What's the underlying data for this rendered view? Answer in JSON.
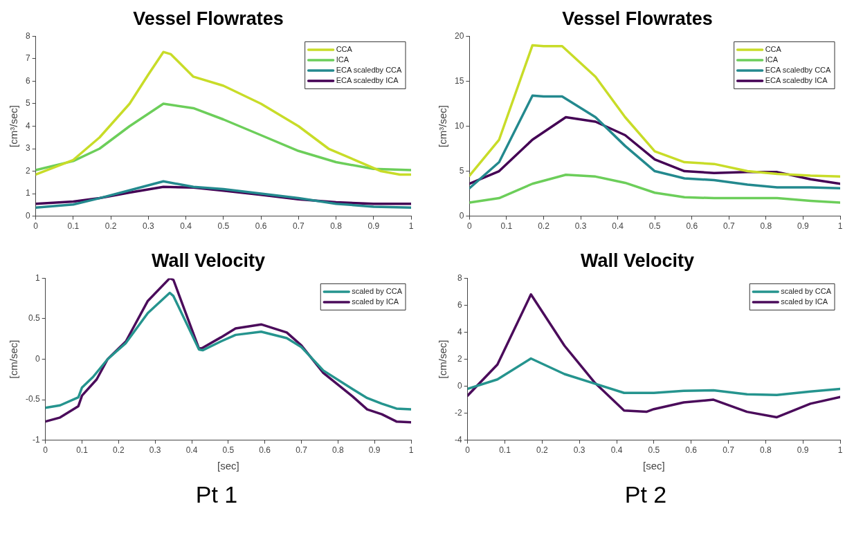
{
  "chart_data": [
    {
      "type": "line",
      "title": "Vessel Flowrates",
      "ylabel": "[cm³/sec]",
      "xlim": [
        0,
        1
      ],
      "xticks": [
        0,
        0.1,
        0.2,
        0.3,
        0.4,
        0.5,
        0.6,
        0.7,
        0.8,
        0.9,
        1
      ],
      "ylim": [
        0,
        8
      ],
      "yticks": [
        0,
        1,
        2,
        3,
        4,
        5,
        6,
        7,
        8
      ],
      "grid": false,
      "legend": "top right",
      "marker": "none",
      "line_style": "solid",
      "series": [
        {
          "name": "CCA",
          "color": "#c8dc28",
          "x": [
            0,
            0.1,
            0.17,
            0.25,
            0.3,
            0.34,
            0.36,
            0.42,
            0.5,
            0.6,
            0.7,
            0.78,
            0.85,
            0.92,
            0.97,
            1
          ],
          "values": [
            1.85,
            2.5,
            3.5,
            5.0,
            6.3,
            7.3,
            7.2,
            6.2,
            5.8,
            5.0,
            4.0,
            3.0,
            2.5,
            2.0,
            1.85,
            1.85
          ]
        },
        {
          "name": "ICA",
          "color": "#6cce5a",
          "x": [
            0,
            0.1,
            0.17,
            0.25,
            0.34,
            0.42,
            0.5,
            0.6,
            0.7,
            0.8,
            0.9,
            1
          ],
          "values": [
            2.05,
            2.45,
            3.0,
            4.0,
            5.0,
            4.8,
            4.3,
            3.6,
            2.9,
            2.4,
            2.1,
            2.05
          ]
        },
        {
          "name": "ECA scaledby CCA",
          "color": "#23898e",
          "x": [
            0,
            0.1,
            0.17,
            0.25,
            0.34,
            0.42,
            0.5,
            0.6,
            0.7,
            0.8,
            0.9,
            1
          ],
          "values": [
            0.38,
            0.52,
            0.8,
            1.15,
            1.55,
            1.3,
            1.2,
            1.0,
            0.8,
            0.55,
            0.42,
            0.38
          ]
        },
        {
          "name": "ECA scaledby ICA",
          "color": "#440154",
          "x": [
            0,
            0.1,
            0.17,
            0.25,
            0.34,
            0.42,
            0.5,
            0.6,
            0.7,
            0.8,
            0.9,
            1
          ],
          "values": [
            0.55,
            0.65,
            0.8,
            1.05,
            1.3,
            1.27,
            1.13,
            0.95,
            0.75,
            0.62,
            0.55,
            0.55
          ]
        }
      ]
    },
    {
      "type": "line",
      "title": "Vessel Flowrates",
      "ylabel": "[cm³/sec]",
      "xlim": [
        0,
        1
      ],
      "xticks": [
        0,
        0.1,
        0.2,
        0.3,
        0.4,
        0.5,
        0.6,
        0.7,
        0.8,
        0.9,
        1
      ],
      "ylim": [
        0,
        20
      ],
      "yticks": [
        0,
        5,
        10,
        15,
        20
      ],
      "grid": false,
      "legend": "top right",
      "marker": "none",
      "line_style": "solid",
      "series": [
        {
          "name": "CCA",
          "color": "#c8dc28",
          "x": [
            0,
            0.08,
            0.17,
            0.2,
            0.25,
            0.34,
            0.42,
            0.5,
            0.58,
            0.66,
            0.75,
            0.83,
            0.92,
            1
          ],
          "values": [
            4.5,
            8.5,
            19,
            18.9,
            18.9,
            15.5,
            11,
            7.2,
            6.0,
            5.8,
            5.0,
            4.7,
            4.5,
            4.4
          ]
        },
        {
          "name": "ICA",
          "color": "#6cce5a",
          "x": [
            0,
            0.08,
            0.17,
            0.26,
            0.34,
            0.42,
            0.5,
            0.58,
            0.66,
            0.75,
            0.83,
            0.92,
            1
          ],
          "values": [
            1.5,
            2.0,
            3.6,
            4.6,
            4.4,
            3.7,
            2.6,
            2.1,
            2.0,
            2.0,
            2.0,
            1.7,
            1.5
          ]
        },
        {
          "name": "ECA scaledby CCA",
          "color": "#23898e",
          "x": [
            0,
            0.08,
            0.17,
            0.2,
            0.25,
            0.34,
            0.42,
            0.5,
            0.58,
            0.66,
            0.75,
            0.83,
            0.92,
            1
          ],
          "values": [
            3.1,
            6.0,
            13.4,
            13.3,
            13.3,
            11.0,
            7.8,
            5.0,
            4.2,
            4.0,
            3.5,
            3.2,
            3.2,
            3.1
          ]
        },
        {
          "name": "ECA scaledby ICA",
          "color": "#440154",
          "x": [
            0,
            0.08,
            0.17,
            0.26,
            0.34,
            0.42,
            0.5,
            0.58,
            0.66,
            0.75,
            0.83,
            0.92,
            1
          ],
          "values": [
            3.6,
            5.0,
            8.5,
            11.0,
            10.5,
            9.0,
            6.3,
            5.0,
            4.8,
            4.9,
            4.9,
            4.1,
            3.6
          ]
        }
      ]
    },
    {
      "type": "line",
      "title": "Wall Velocity",
      "xlabel": "[sec]",
      "ylabel": "[cm/sec]",
      "annotations": [
        "Pt 1"
      ],
      "xlim": [
        0,
        1
      ],
      "xticks": [
        0,
        0.1,
        0.2,
        0.3,
        0.4,
        0.5,
        0.6,
        0.7,
        0.8,
        0.9,
        1
      ],
      "ylim": [
        -1,
        1
      ],
      "yticks": [
        -1,
        -0.5,
        0,
        0.5,
        1
      ],
      "grid": false,
      "legend": "top right",
      "marker": "none",
      "line_style": "solid",
      "series": [
        {
          "name": "scaled by CCA",
          "color": "#25948e",
          "x": [
            0,
            0.04,
            0.09,
            0.1,
            0.13,
            0.17,
            0.22,
            0.28,
            0.34,
            0.35,
            0.42,
            0.43,
            0.48,
            0.52,
            0.59,
            0.66,
            0.7,
            0.76,
            0.84,
            0.88,
            0.92,
            0.96,
            1
          ],
          "values": [
            -0.6,
            -0.57,
            -0.47,
            -0.35,
            -0.22,
            0,
            0.2,
            0.57,
            0.82,
            0.78,
            0.12,
            0.11,
            0.22,
            0.3,
            0.34,
            0.26,
            0.15,
            -0.14,
            -0.37,
            -0.48,
            -0.55,
            -0.61,
            -0.62
          ]
        },
        {
          "name": "scaled by ICA",
          "color": "#4b0c5b",
          "x": [
            0,
            0.04,
            0.09,
            0.1,
            0.14,
            0.17,
            0.22,
            0.28,
            0.34,
            0.35,
            0.42,
            0.43,
            0.48,
            0.52,
            0.59,
            0.66,
            0.7,
            0.76,
            0.84,
            0.88,
            0.92,
            0.96,
            1
          ],
          "values": [
            -0.77,
            -0.72,
            -0.58,
            -0.45,
            -0.25,
            0,
            0.22,
            0.72,
            1.0,
            0.98,
            0.13,
            0.14,
            0.27,
            0.38,
            0.43,
            0.33,
            0.17,
            -0.17,
            -0.46,
            -0.62,
            -0.68,
            -0.77,
            -0.78
          ]
        }
      ]
    },
    {
      "type": "line",
      "title": "Wall Velocity",
      "xlabel": "[sec]",
      "ylabel": "[cm/sec]",
      "annotations": [
        "Pt 2"
      ],
      "xlim": [
        0,
        1
      ],
      "xticks": [
        0,
        0.1,
        0.2,
        0.3,
        0.4,
        0.5,
        0.6,
        0.7,
        0.8,
        0.9,
        1
      ],
      "ylim": [
        -4,
        8
      ],
      "yticks": [
        -4,
        -2,
        0,
        2,
        4,
        6,
        8
      ],
      "grid": false,
      "legend": "top right",
      "marker": "none",
      "line_style": "solid",
      "series": [
        {
          "name": "scaled by CCA",
          "color": "#25948e",
          "x": [
            0,
            0.08,
            0.17,
            0.26,
            0.34,
            0.42,
            0.5,
            0.58,
            0.66,
            0.75,
            0.83,
            0.92,
            1
          ],
          "values": [
            -0.2,
            0.5,
            2.05,
            0.9,
            0.2,
            -0.5,
            -0.5,
            -0.35,
            -0.3,
            -0.6,
            -0.65,
            -0.4,
            -0.2
          ]
        },
        {
          "name": "scaled by ICA",
          "color": "#4b0c5b",
          "x": [
            0,
            0.08,
            0.17,
            0.26,
            0.34,
            0.42,
            0.48,
            0.5,
            0.58,
            0.66,
            0.75,
            0.83,
            0.92,
            1
          ],
          "values": [
            -0.7,
            1.6,
            6.8,
            3.0,
            0.3,
            -1.8,
            -1.9,
            -1.7,
            -1.2,
            -1.0,
            -1.9,
            -2.3,
            -1.3,
            -0.8
          ]
        }
      ]
    }
  ]
}
